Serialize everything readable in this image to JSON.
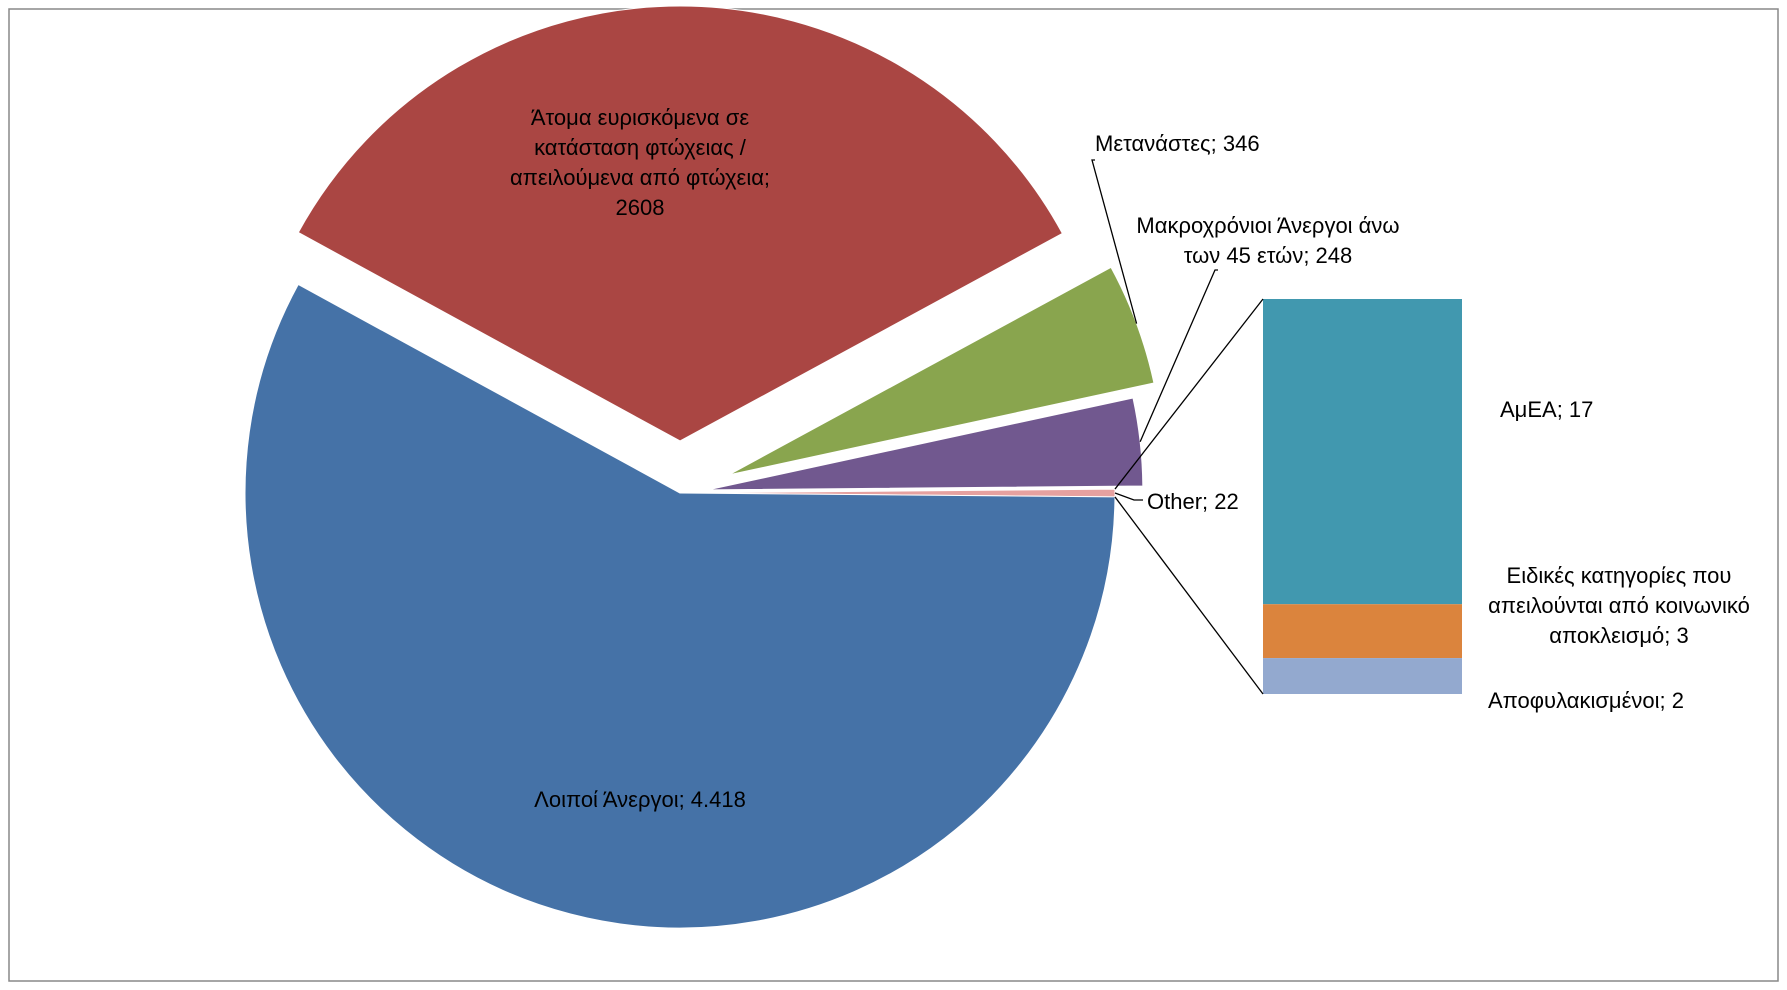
{
  "chart_data": {
    "type": "bar-of-pie",
    "slices": [
      {
        "label": "Λοιποί Άνεργοι; 4.418",
        "name": "Λοιποί Άνεργοι",
        "value": 4418,
        "color": "#4572A7"
      },
      {
        "label": "Άτομα ευρισκόμενα σε κατάσταση φτώχειας / απειλούμενα από φτώχεια; 2608",
        "lines": [
          "Άτομα ευρισκόμενα σε",
          "κατάσταση φτώχειας /",
          "απειλούμενα από φτώχεια;",
          "2608"
        ],
        "name": "Άτομα ευρισκόμενα σε κατάσταση φτώχειας / απειλούμενα από φτώχεια",
        "value": 2608,
        "color": "#AA4643"
      },
      {
        "label": "Μετανάστες; 346",
        "name": "Μετανάστες",
        "value": 346,
        "color": "#89A54E"
      },
      {
        "label": "Μακροχρόνιοι Άνεργοι άνω των 45 ετών; 248",
        "lines": [
          "Μακροχρόνιοι Άνεργοι άνω",
          "των 45 ετών; 248"
        ],
        "name": "Μακροχρόνιοι Άνεργοι άνω των 45 ετών",
        "value": 248,
        "color": "#71588F"
      },
      {
        "label": "Other; 22",
        "name": "Other",
        "value": 22,
        "color": "#E6A1A0"
      }
    ],
    "bar": [
      {
        "label": "ΑμΕΑ; 17",
        "name": "ΑμΕΑ",
        "value": 17,
        "color": "#4198AF"
      },
      {
        "label": "Ειδικές κατηγορίες που απειλούνται από κοινωνικό αποκλεισμό; 3",
        "lines": [
          "Ειδικές κατηγορίες που",
          "απειλούνται από κοινωνικό",
          "αποκλεισμό; 3"
        ],
        "name": "Ειδικές κατηγορίες που απειλούνται από κοινωνικό αποκλεισμό",
        "value": 3,
        "color": "#DB843D"
      },
      {
        "label": "Αποφυλακισμένοι; 2",
        "name": "Αποφυλακισμένοι",
        "value": 2,
        "color": "#93A9CF"
      }
    ],
    "title": "",
    "legend": "none",
    "border_color": "#898989",
    "leader_line_color": "#000000"
  }
}
